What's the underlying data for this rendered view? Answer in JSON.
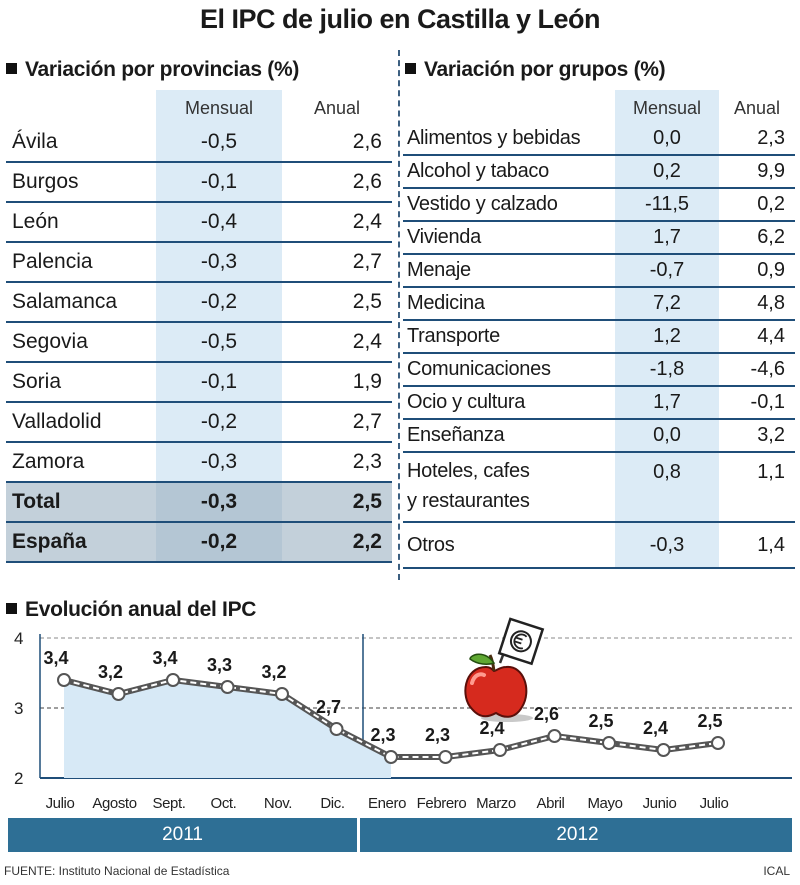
{
  "title": "El IPC de julio en Castilla y León",
  "provincias": {
    "heading": "Variación por provincias (%)",
    "col_mensual": "Mensual",
    "col_anual": "Anual",
    "rows": [
      {
        "name": "Ávila",
        "mensual": "-0,5",
        "anual": "2,6"
      },
      {
        "name": "Burgos",
        "mensual": "-0,1",
        "anual": "2,6"
      },
      {
        "name": "León",
        "mensual": "-0,4",
        "anual": "2,4"
      },
      {
        "name": "Palencia",
        "mensual": "-0,3",
        "anual": "2,7"
      },
      {
        "name": "Salamanca",
        "mensual": "-0,2",
        "anual": "2,5"
      },
      {
        "name": "Segovia",
        "mensual": "-0,5",
        "anual": "2,4"
      },
      {
        "name": "Soria",
        "mensual": "-0,1",
        "anual": "1,9"
      },
      {
        "name": "Valladolid",
        "mensual": "-0,2",
        "anual": "2,7"
      },
      {
        "name": "Zamora",
        "mensual": "-0,3",
        "anual": "2,3"
      },
      {
        "name": "Total",
        "mensual": "-0,3",
        "anual": "2,5"
      },
      {
        "name": "España",
        "mensual": "-0,2",
        "anual": "2,2"
      }
    ]
  },
  "grupos": {
    "heading": "Variación por grupos (%)",
    "col_mensual": "Mensual",
    "col_anual": "Anual",
    "rows": [
      {
        "name": "Alimentos y bebidas",
        "mensual": "0,0",
        "anual": "2,3"
      },
      {
        "name": "Alcohol y tabaco",
        "mensual": "0,2",
        "anual": "9,9"
      },
      {
        "name": "Vestido y calzado",
        "mensual": "-11,5",
        "anual": "0,2"
      },
      {
        "name": "Vivienda",
        "mensual": "1,7",
        "anual": "6,2"
      },
      {
        "name": "Menaje",
        "mensual": "-0,7",
        "anual": "0,9"
      },
      {
        "name": "Medicina",
        "mensual": "7,2",
        "anual": "4,8"
      },
      {
        "name": "Transporte",
        "mensual": "1,2",
        "anual": "4,4"
      },
      {
        "name": "Comunicaciones",
        "mensual": "-1,8",
        "anual": "-4,6"
      },
      {
        "name": "Ocio y cultura",
        "mensual": "1,7",
        "anual": "-0,1"
      },
      {
        "name": "Enseñanza",
        "mensual": "0,0",
        "anual": "3,2"
      },
      {
        "name": "Hoteles, cafes",
        "name2": "y restaurantes",
        "mensual": "0,8",
        "anual": "1,1"
      },
      {
        "name": "Otros",
        "mensual": "-0,3",
        "anual": "1,4"
      }
    ]
  },
  "evolucion": {
    "heading": "Evolución anual del IPC",
    "years": [
      "2011",
      "2012"
    ]
  },
  "chart_data": {
    "type": "line",
    "title": "Evolución anual del IPC",
    "categories": [
      "Julio",
      "Agosto",
      "Sept.",
      "Oct.",
      "Nov.",
      "Dic.",
      "Enero",
      "Febrero",
      "Marzo",
      "Abril",
      "Mayo",
      "Junio",
      "Julio"
    ],
    "values": [
      3.4,
      3.2,
      3.4,
      3.3,
      3.2,
      2.7,
      2.3,
      2.3,
      2.4,
      2.6,
      2.5,
      2.4,
      2.5
    ],
    "value_labels": [
      "3,4",
      "3,2",
      "3,4",
      "3,3",
      "3,2",
      "2,7",
      "2,3",
      "2,3",
      "2,4",
      "2,6",
      "2,5",
      "2,4",
      "2,5"
    ],
    "yticks": [
      "2",
      "3",
      "4"
    ],
    "ylim": [
      2,
      4
    ],
    "grid": "dashed at 3 and 4",
    "line_color": "#555555",
    "fill_color": "#d7e9f6"
  },
  "footer": {
    "source": "FUENTE: Instituto Nacional de Estadística",
    "credit": "ICAL"
  },
  "colors": {
    "accent": "#1f4e79",
    "year_bar": "#2e6f95",
    "mensual_col": "#dcebf6",
    "apple": "#d62a1e"
  }
}
